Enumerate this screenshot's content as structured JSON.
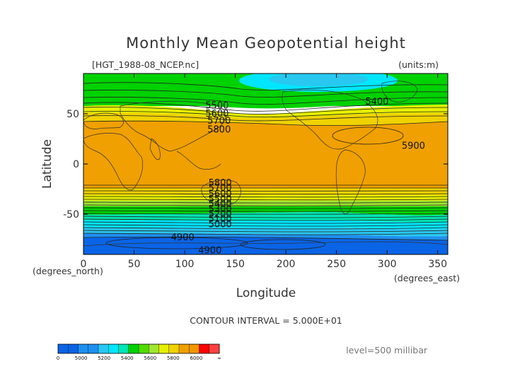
{
  "chart_data": {
    "type": "contour map",
    "title": "Monthly Mean Geopotential height",
    "file_label": "[HGT_1988-08_NCEP.nc]",
    "units_label": "(units:m)",
    "xlabel": "Longitude",
    "ylabel": "Latitude",
    "x_unit_label": "(degrees_east)",
    "y_unit_label": "(degrees_north)",
    "xlim": [
      0,
      360
    ],
    "ylim": [
      -90,
      90
    ],
    "x_ticks": [
      "0",
      "50",
      "100",
      "150",
      "200",
      "250",
      "300",
      "350"
    ],
    "y_ticks": [
      "50",
      "0",
      "-50"
    ],
    "contour_interval_text": "CONTOUR INTERVAL = 5.000E+01",
    "level_text": "level=500 millibar",
    "contour_labels": [
      {
        "text": "5500",
        "lon": 132,
        "lat": 58
      },
      {
        "text": "5400",
        "lon": 290,
        "lat": 62
      },
      {
        "text": "5600",
        "lon": 132,
        "lat": 50
      },
      {
        "text": "5700",
        "lon": 134,
        "lat": 43
      },
      {
        "text": "5800",
        "lon": 134,
        "lat": 34
      },
      {
        "text": "5900",
        "lon": 326,
        "lat": 18
      },
      {
        "text": "5800",
        "lon": 135,
        "lat": -19
      },
      {
        "text": "5700",
        "lon": 135,
        "lat": -24
      },
      {
        "text": "5600",
        "lon": 135,
        "lat": -30
      },
      {
        "text": "5500",
        "lon": 135,
        "lat": -35
      },
      {
        "text": "5400",
        "lon": 135,
        "lat": -40
      },
      {
        "text": "5300",
        "lon": 135,
        "lat": -45
      },
      {
        "text": "5200",
        "lon": 135,
        "lat": -50
      },
      {
        "text": "5100",
        "lon": 135,
        "lat": -55
      },
      {
        "text": "5000",
        "lon": 135,
        "lat": -60
      },
      {
        "text": "4900",
        "lon": 98,
        "lat": -73
      },
      {
        "text": "4900",
        "lon": 125,
        "lat": -86
      }
    ],
    "colorbar": {
      "tick_labels": [
        "0",
        "5000",
        "5200",
        "5400",
        "5600",
        "5800",
        "6000",
        "∞"
      ],
      "colors": [
        "#0a64e6",
        "#0a64e6",
        "#1e90f0",
        "#1e90f0",
        "#28c8f0",
        "#00e6ff",
        "#00e6b4",
        "#00d200",
        "#50dc00",
        "#a0e632",
        "#e6f000",
        "#f0d200",
        "#f0a000",
        "#f09600",
        "#ff0000",
        "#ff4040"
      ]
    }
  }
}
